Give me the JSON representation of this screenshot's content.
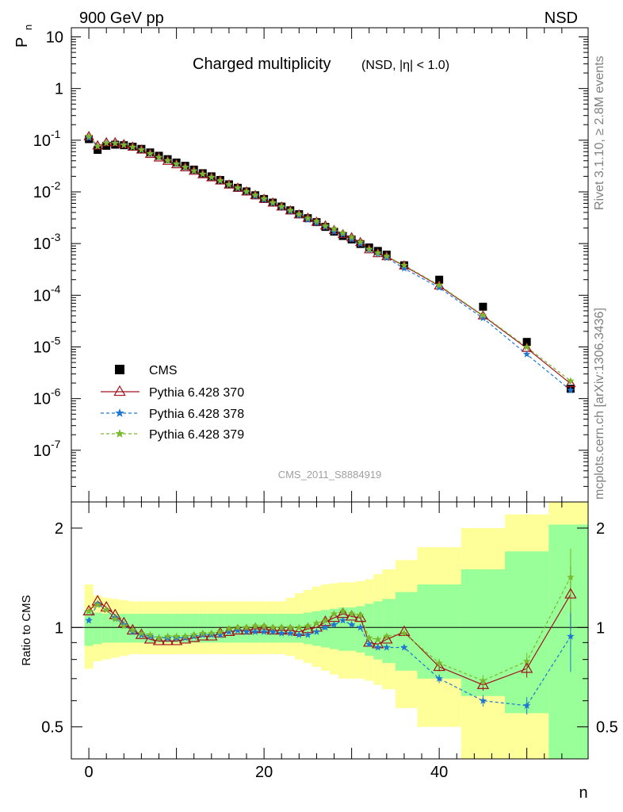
{
  "header": {
    "left": "900 GeV pp",
    "right": "NSD"
  },
  "side": {
    "rivet": "Rivet 3.1.10, ≥ 2.8M events",
    "mcplots": "mcplots.cern.ch [arXiv:1306.3436]"
  },
  "chart_data": [
    {
      "type": "scatter",
      "title": "Charged multiplicity",
      "subtitle": "(NSD, |η| < 1.0)",
      "ylabel_main": "P",
      "ylabel_sub": "n",
      "watermark": "CMS_2011_S8884919",
      "xlim": [
        -2,
        57
      ],
      "ylim": [
        1e-08,
        15
      ],
      "yscale": "log",
      "yticklabels": [
        {
          "base": "10",
          "exp": "-7",
          "value": 1e-07
        },
        {
          "base": "10",
          "exp": "-6",
          "value": 1e-06
        },
        {
          "base": "10",
          "exp": "-5",
          "value": 1e-05
        },
        {
          "base": "10",
          "exp": "-4",
          "value": 0.0001
        },
        {
          "base": "10",
          "exp": "-3",
          "value": 0.001
        },
        {
          "base": "10",
          "exp": "-2",
          "value": 0.01
        },
        {
          "base": "10",
          "exp": "-1",
          "value": 0.1
        },
        {
          "base": "1",
          "exp": "",
          "value": 1
        },
        {
          "base": "10",
          "exp": "",
          "value": 10
        }
      ],
      "legend": [
        {
          "label": "CMS",
          "color": "#000000",
          "marker": "square"
        },
        {
          "label": "Pythia 6.428 370",
          "color": "#a0121e",
          "marker": "triangle"
        },
        {
          "label": "Pythia 6.428 378",
          "color": "#1f77d2",
          "marker": "star"
        },
        {
          "label": "Pythia 6.428 379",
          "color": "#7ab92d",
          "marker": "star"
        }
      ],
      "x": [
        0,
        1,
        2,
        3,
        4,
        5,
        6,
        7,
        8,
        9,
        10,
        11,
        12,
        13,
        14,
        15,
        16,
        17,
        18,
        19,
        20,
        21,
        22,
        23,
        24,
        25,
        26,
        27,
        28,
        29,
        30,
        31,
        32,
        33,
        34,
        36,
        40,
        45,
        50,
        55
      ],
      "series": [
        {
          "name": "CMS",
          "values": [
            0.105,
            0.065,
            0.078,
            0.082,
            0.08,
            0.075,
            0.068,
            0.058,
            0.05,
            0.043,
            0.037,
            0.032,
            0.027,
            0.023,
            0.02,
            0.017,
            0.014,
            0.012,
            0.0102,
            0.0086,
            0.0073,
            0.0062,
            0.0052,
            0.0044,
            0.0037,
            0.0031,
            0.0026,
            0.0021,
            0.0017,
            0.0014,
            0.0012,
            0.00098,
            0.00084,
            0.00072,
            0.00061,
            0.00038,
            0.0002,
            6e-05,
            1.25e-05,
            1.55e-06
          ]
        },
        {
          "name": "Pythia 6.428 370",
          "values": [
            0.1176,
            0.078,
            0.0897,
            0.0894,
            0.0824,
            0.0735,
            0.0646,
            0.0534,
            0.0455,
            0.0391,
            0.0337,
            0.0294,
            0.0251,
            0.0216,
            0.0188,
            0.0163,
            0.0136,
            0.0118,
            0.01,
            0.0085,
            0.0072,
            0.0061,
            0.0051,
            0.0043,
            0.0036,
            0.0031,
            0.0026,
            0.0022,
            0.0018,
            0.0015,
            0.0013,
            0.00105,
            0.00076,
            0.00064,
            0.00056,
            0.00037,
            0.000152,
            4e-05,
            9.4e-06,
            1.95e-06
          ]
        },
        {
          "name": "Pythia 6.428 378",
          "values": [
            0.1103,
            0.0767,
            0.0881,
            0.0877,
            0.0816,
            0.0728,
            0.0646,
            0.0545,
            0.0465,
            0.04,
            0.0344,
            0.0298,
            0.0254,
            0.0219,
            0.019,
            0.0162,
            0.0136,
            0.0117,
            0.0099,
            0.0083,
            0.0071,
            0.006,
            0.005,
            0.0042,
            0.0035,
            0.0029,
            0.0025,
            0.0021,
            0.0017,
            0.0015,
            0.0012,
            0.00098,
            0.00075,
            0.00063,
            0.00053,
            0.00033,
            0.00014,
            3.6e-05,
            7.2e-06,
            1.45e-06
          ]
        },
        {
          "name": "Pythia 6.428 379",
          "values": [
            0.1176,
            0.0761,
            0.0881,
            0.0869,
            0.0808,
            0.0735,
            0.0653,
            0.055,
            0.0465,
            0.0404,
            0.0348,
            0.0301,
            0.0256,
            0.0221,
            0.0192,
            0.0165,
            0.0139,
            0.012,
            0.0102,
            0.0087,
            0.0074,
            0.0062,
            0.0052,
            0.0044,
            0.0037,
            0.0031,
            0.0027,
            0.0022,
            0.0019,
            0.0016,
            0.00132,
            0.00107,
            0.00078,
            0.00066,
            0.00057,
            0.00038,
            0.000156,
            4.1e-05,
            9.9e-06,
            2.2e-06
          ]
        }
      ]
    },
    {
      "type": "line",
      "ylabel": "Ratio to CMS",
      "xlabel": "n",
      "xlim": [
        -2,
        57
      ],
      "ylim": [
        0.4,
        2.4
      ],
      "yscale": "log",
      "xticklabels": [
        "0",
        "20",
        "40"
      ],
      "yticklabels": [
        "0.5",
        "1",
        "2"
      ],
      "bands": {
        "edges": [
          -0.5,
          0.5,
          1.5,
          2.5,
          3.5,
          4.5,
          5.5,
          6.5,
          7.5,
          8.5,
          9.5,
          10.5,
          11.5,
          12.5,
          13.5,
          14.5,
          15.5,
          16.5,
          17.5,
          18.5,
          19.5,
          20.5,
          21.5,
          22.5,
          23.5,
          24.5,
          25.5,
          26.5,
          27.5,
          28.5,
          29.5,
          30.5,
          31.5,
          32.5,
          33.5,
          35.0,
          37.5,
          42.5,
          47.5,
          52.5,
          57.5
        ],
        "green_lo": [
          0.88,
          0.89,
          0.9,
          0.9,
          0.9,
          0.9,
          0.9,
          0.9,
          0.9,
          0.9,
          0.9,
          0.9,
          0.9,
          0.9,
          0.9,
          0.9,
          0.9,
          0.9,
          0.9,
          0.9,
          0.9,
          0.9,
          0.9,
          0.9,
          0.9,
          0.89,
          0.88,
          0.87,
          0.86,
          0.85,
          0.85,
          0.84,
          0.82,
          0.8,
          0.78,
          0.74,
          0.7,
          0.62,
          0.55,
          0.35
        ],
        "green_hi": [
          1.13,
          1.11,
          1.1,
          1.1,
          1.1,
          1.1,
          1.1,
          1.1,
          1.1,
          1.1,
          1.1,
          1.1,
          1.1,
          1.1,
          1.1,
          1.1,
          1.1,
          1.1,
          1.1,
          1.1,
          1.1,
          1.1,
          1.1,
          1.1,
          1.1,
          1.11,
          1.12,
          1.13,
          1.14,
          1.15,
          1.15,
          1.16,
          1.18,
          1.2,
          1.22,
          1.28,
          1.35,
          1.5,
          1.7,
          2.05
        ],
        "yellow_lo": [
          0.75,
          0.79,
          0.8,
          0.81,
          0.82,
          0.83,
          0.83,
          0.83,
          0.83,
          0.83,
          0.83,
          0.83,
          0.83,
          0.83,
          0.83,
          0.83,
          0.83,
          0.83,
          0.83,
          0.83,
          0.83,
          0.83,
          0.83,
          0.82,
          0.8,
          0.78,
          0.76,
          0.74,
          0.72,
          0.7,
          0.7,
          0.7,
          0.69,
          0.67,
          0.65,
          0.57,
          0.5,
          0.35,
          0.35,
          0.35
        ],
        "yellow_hi": [
          1.35,
          1.25,
          1.23,
          1.22,
          1.21,
          1.2,
          1.2,
          1.2,
          1.2,
          1.2,
          1.2,
          1.2,
          1.2,
          1.2,
          1.2,
          1.2,
          1.2,
          1.2,
          1.2,
          1.2,
          1.2,
          1.2,
          1.2,
          1.23,
          1.27,
          1.3,
          1.33,
          1.35,
          1.36,
          1.37,
          1.37,
          1.38,
          1.4,
          1.45,
          1.5,
          1.6,
          1.75,
          2.0,
          2.2,
          2.5
        ]
      },
      "series": [
        {
          "name": "Pythia 6.428 370",
          "values": [
            1.12,
            1.2,
            1.15,
            1.09,
            1.03,
            0.98,
            0.95,
            0.92,
            0.91,
            0.91,
            0.91,
            0.92,
            0.93,
            0.94,
            0.94,
            0.96,
            0.97,
            0.98,
            0.98,
            0.99,
            0.99,
            0.98,
            0.98,
            0.98,
            0.97,
            0.99,
            1.0,
            1.04,
            1.07,
            1.1,
            1.08,
            1.07,
            0.9,
            0.89,
            0.92,
            0.97,
            0.76,
            0.67,
            0.75,
            1.26
          ]
        },
        {
          "name": "Pythia 6.428 378",
          "values": [
            1.05,
            1.18,
            1.13,
            1.07,
            1.02,
            0.97,
            0.95,
            0.94,
            0.93,
            0.93,
            0.93,
            0.93,
            0.94,
            0.95,
            0.95,
            0.95,
            0.97,
            0.98,
            0.97,
            0.97,
            0.97,
            0.97,
            0.96,
            0.96,
            0.95,
            0.95,
            0.97,
            1.0,
            1.02,
            1.05,
            1.02,
            1.0,
            0.89,
            0.87,
            0.87,
            0.87,
            0.7,
            0.6,
            0.58,
            0.94
          ]
        },
        {
          "name": "Pythia 6.428 379",
          "values": [
            1.12,
            1.17,
            1.13,
            1.06,
            1.01,
            0.98,
            0.96,
            0.95,
            0.93,
            0.94,
            0.94,
            0.94,
            0.95,
            0.96,
            0.96,
            0.97,
            0.99,
            1.0,
            1.0,
            1.01,
            1.01,
            1.0,
            1.0,
            1.0,
            1.0,
            1.01,
            1.03,
            1.05,
            1.1,
            1.12,
            1.1,
            1.09,
            0.93,
            0.92,
            0.94,
            0.96,
            0.78,
            0.69,
            0.79,
            1.42
          ]
        }
      ]
    }
  ]
}
